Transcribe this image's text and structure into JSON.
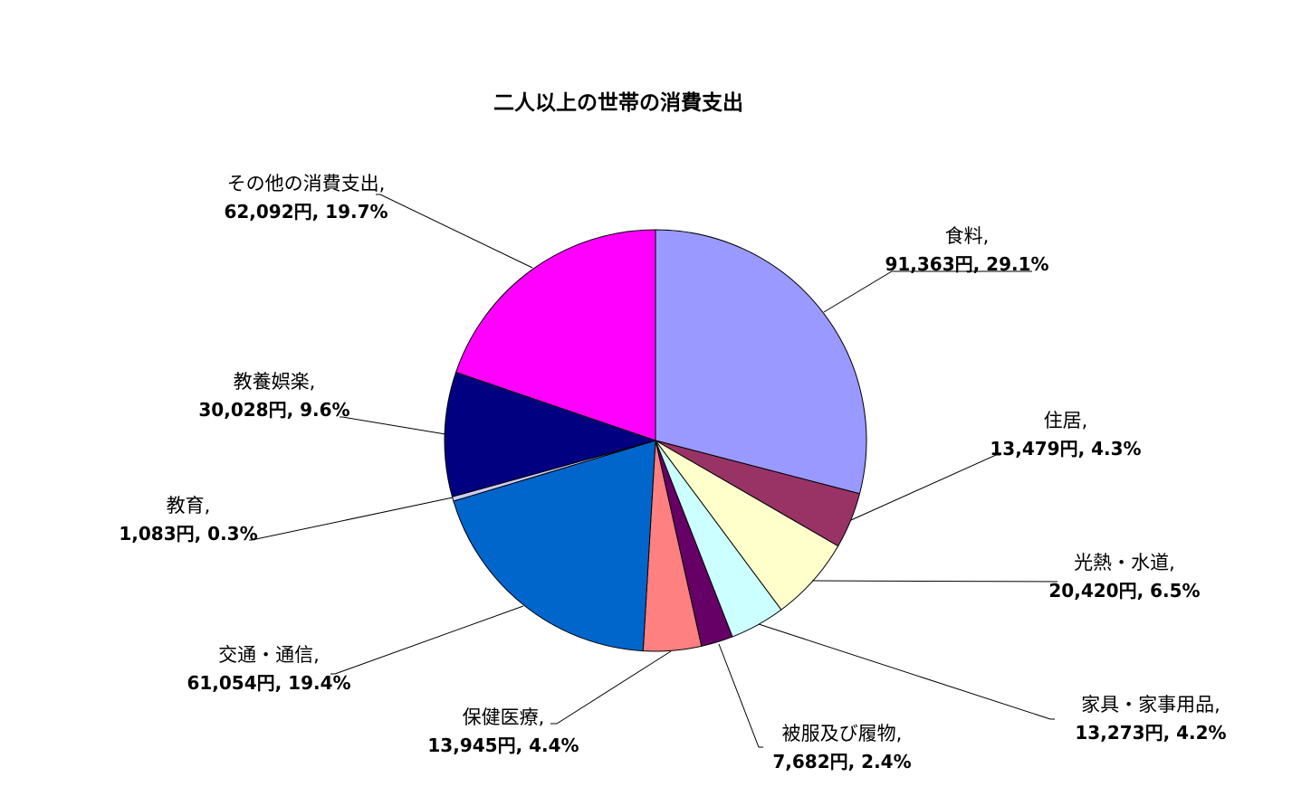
{
  "chart_data": {
    "type": "pie",
    "title": "二人以上の世帯の消費支出",
    "unit": "円",
    "start": "top",
    "direction": "clockwise",
    "slices": [
      {
        "name": "食料",
        "value": 91363,
        "percent": 29.1,
        "color": "#9999FF"
      },
      {
        "name": "住居",
        "value": 13479,
        "percent": 4.3,
        "color": "#993366"
      },
      {
        "name": "光熱・水道",
        "value": 20420,
        "percent": 6.5,
        "color": "#FFFFCC"
      },
      {
        "name": "家具・家事用品",
        "value": 13273,
        "percent": 4.2,
        "color": "#CCFFFF"
      },
      {
        "name": "被服及び履物",
        "value": 7682,
        "percent": 2.4,
        "color": "#660066"
      },
      {
        "name": "保健医療",
        "value": 13945,
        "percent": 4.4,
        "color": "#FF8080"
      },
      {
        "name": "交通・通信",
        "value": 61054,
        "percent": 19.4,
        "color": "#0066CC"
      },
      {
        "name": "教育",
        "value": 1083,
        "percent": 0.3,
        "color": "#CCCCFF"
      },
      {
        "name": "教養娯楽",
        "value": 30028,
        "percent": 9.6,
        "color": "#000080"
      },
      {
        "name": "その他の消費支出",
        "value": 62092,
        "percent": 19.7,
        "color": "#FF00FF"
      }
    ]
  }
}
